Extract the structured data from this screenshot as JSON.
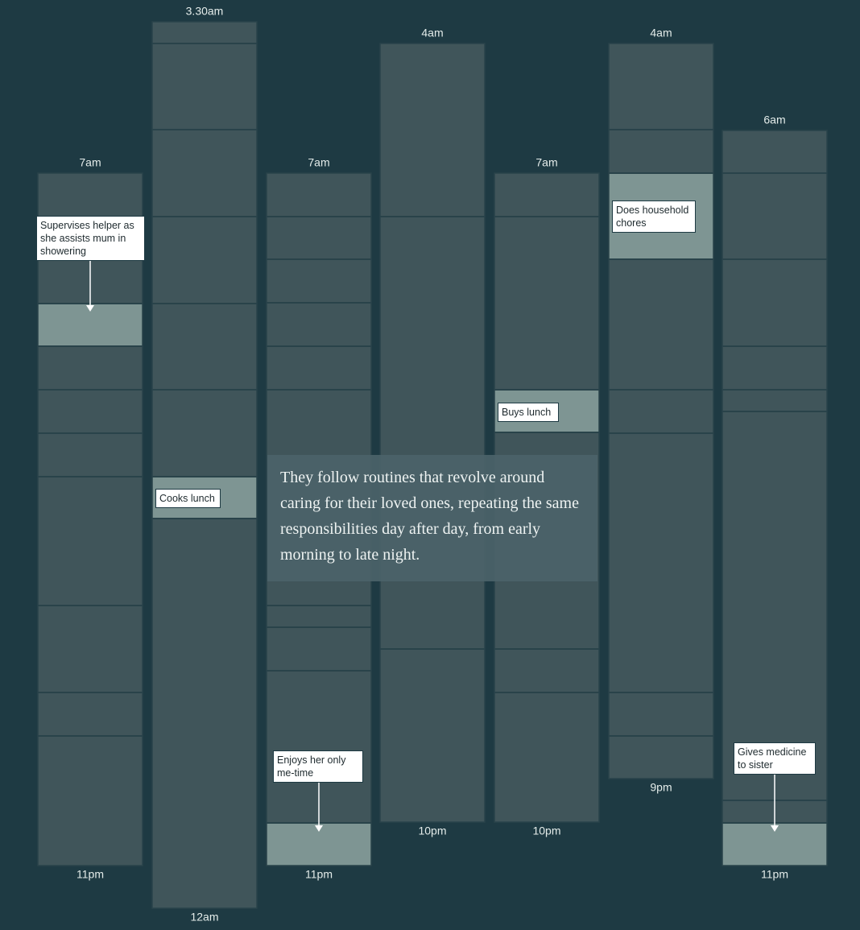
{
  "columns": [
    {
      "start": "7am",
      "end": "11pm",
      "note": "Supervises helper as she assists mum in showering"
    },
    {
      "start": "3.30am",
      "end": "12am",
      "note": "Cooks lunch"
    },
    {
      "start": "7am",
      "end": "11pm",
      "note": "Enjoys her only me-time"
    },
    {
      "start": "4am",
      "end": "10pm"
    },
    {
      "start": "7am",
      "end": "10pm",
      "note": "Buys lunch"
    },
    {
      "start": "4am",
      "end": "9pm",
      "note": "Does household chores"
    },
    {
      "start": "6am",
      "end": "11pm",
      "note": "Gives medicine to sister"
    }
  ],
  "caption": "They follow routines that revolve around caring for their loved ones, repeating the same responsibilities day after day, from early morning to late night."
}
